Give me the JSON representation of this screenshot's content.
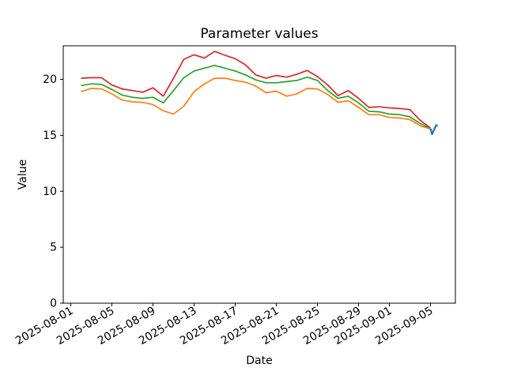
{
  "figure": {
    "background": "#ffffff",
    "plot_background": "#ffffff",
    "spine_color": "#000000"
  },
  "chart_data": {
    "type": "line",
    "title": "Parameter values",
    "xlabel": "Date",
    "ylabel": "Value",
    "grid": false,
    "legend": null,
    "ylim": [
      0,
      23
    ],
    "xlim_days": [
      -1.73,
      36.42
    ],
    "x_start_date": "2025-08-02",
    "x_unit": "days since 2025-08-02, daily sampling",
    "y_ticks": [
      0,
      5,
      10,
      15,
      20
    ],
    "y_tick_labels": [
      "0",
      "5",
      "10",
      "15",
      "20"
    ],
    "x_ticks": [
      {
        "day": -1,
        "label": "2025-08-01"
      },
      {
        "day": 3,
        "label": "2025-08-05"
      },
      {
        "day": 7,
        "label": "2025-08-09"
      },
      {
        "day": 11,
        "label": "2025-08-13"
      },
      {
        "day": 15,
        "label": "2025-08-17"
      },
      {
        "day": 19,
        "label": "2025-08-21"
      },
      {
        "day": 23,
        "label": "2025-08-25"
      },
      {
        "day": 27,
        "label": "2025-08-29"
      },
      {
        "day": 30,
        "label": "2025-09-01"
      },
      {
        "day": 34,
        "label": "2025-09-05"
      }
    ],
    "x_days": [
      0,
      1,
      2,
      3,
      4,
      5,
      6,
      7,
      8,
      9,
      10,
      11,
      12,
      13,
      14,
      15,
      16,
      17,
      18,
      19,
      20,
      21,
      22,
      23,
      24,
      25,
      26,
      27,
      28,
      29,
      30,
      31,
      32,
      33,
      34
    ],
    "series": [
      {
        "name": "red-line",
        "color": "#d62728",
        "width": 1.7,
        "values": [
          20.1,
          20.15,
          20.15,
          19.5,
          19.15,
          19.0,
          18.85,
          19.25,
          18.5,
          20.1,
          21.8,
          22.2,
          21.9,
          22.5,
          22.15,
          21.85,
          21.3,
          20.4,
          20.1,
          20.35,
          20.2,
          20.45,
          20.8,
          20.25,
          19.5,
          18.55,
          19.0,
          18.3,
          17.5,
          17.55,
          17.45,
          17.4,
          17.3,
          16.35,
          15.65
        ]
      },
      {
        "name": "green-line",
        "color": "#2ca02c",
        "width": 1.7,
        "values": [
          19.45,
          19.6,
          19.55,
          19.1,
          18.6,
          18.4,
          18.3,
          18.4,
          17.9,
          19.0,
          20.15,
          20.75,
          21.0,
          21.25,
          21.0,
          20.75,
          20.4,
          19.95,
          19.7,
          19.7,
          19.8,
          19.9,
          20.2,
          19.9,
          19.0,
          18.3,
          18.5,
          17.9,
          17.15,
          17.1,
          16.9,
          16.85,
          16.65,
          16.05,
          15.6
        ]
      },
      {
        "name": "orange-line",
        "color": "#ff7f0e",
        "width": 1.7,
        "values": [
          18.9,
          19.2,
          19.15,
          18.7,
          18.15,
          18.0,
          17.95,
          17.75,
          17.2,
          16.9,
          17.6,
          18.9,
          19.6,
          20.1,
          20.1,
          19.9,
          19.75,
          19.4,
          18.8,
          18.95,
          18.5,
          18.7,
          19.2,
          19.15,
          18.65,
          17.95,
          18.1,
          17.5,
          16.85,
          16.85,
          16.6,
          16.55,
          16.4,
          15.85,
          15.55
        ]
      },
      {
        "name": "blue-line",
        "color": "#1f77b4",
        "width": 2.3,
        "x_days": [
          34,
          34.15,
          34.55,
          34.7
        ],
        "values": [
          15.6,
          15.1,
          15.9,
          15.85
        ]
      }
    ]
  }
}
